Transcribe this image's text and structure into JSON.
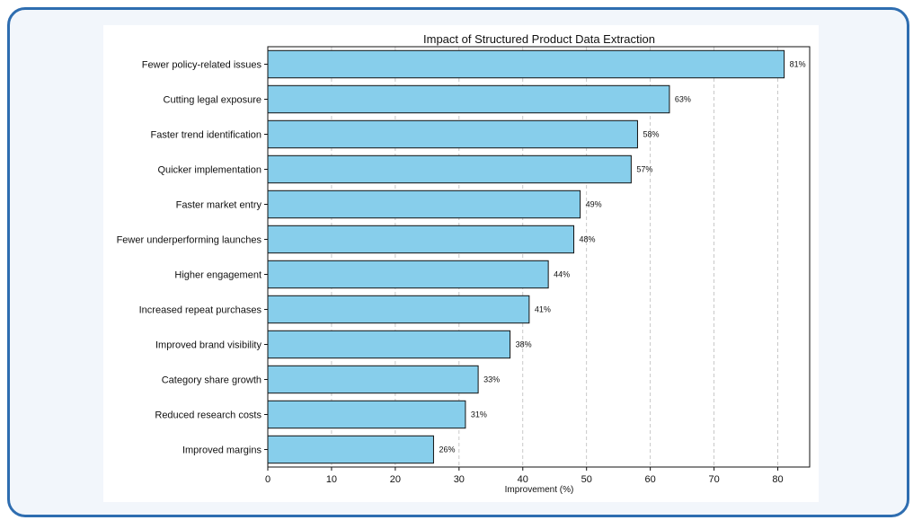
{
  "chart_data": {
    "type": "bar",
    "orientation": "horizontal",
    "title": "Impact of Structured Product Data Extraction",
    "xlabel": "Improvement (%)",
    "ylabel": "",
    "xlim": [
      0,
      85
    ],
    "xticks": [
      0,
      10,
      20,
      30,
      40,
      50,
      60,
      70,
      80
    ],
    "grid": "x-dashed",
    "categories": [
      "Fewer policy-related issues",
      "Cutting legal exposure",
      "Faster trend identification",
      "Quicker implementation",
      "Faster market entry",
      "Fewer underperforming launches",
      "Higher engagement",
      "Increased repeat purchases",
      "Improved brand visibility",
      "Category share growth",
      "Reduced research costs",
      "Improved margins"
    ],
    "values": [
      81,
      63,
      58,
      57,
      49,
      48,
      44,
      41,
      38,
      33,
      31,
      26
    ],
    "value_labels": [
      "81%",
      "63%",
      "58%",
      "57%",
      "49%",
      "48%",
      "44%",
      "41%",
      "38%",
      "33%",
      "31%",
      "26%"
    ],
    "bar_color": "#87ceeb",
    "bar_edge_color": "#111111",
    "frame_color": "#2e6db0"
  }
}
